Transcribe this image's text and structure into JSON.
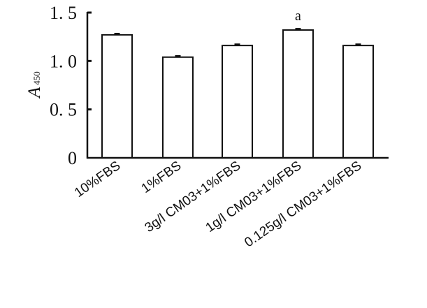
{
  "chart_data": {
    "type": "bar",
    "categories": [
      "10%FBS",
      "1%FBS",
      "3g/l CM03+1%FBS",
      "1g/l CM03+1%FBS",
      "0.125g/l CM03+1%FBS"
    ],
    "values": [
      1.27,
      1.04,
      1.16,
      1.32,
      1.16
    ],
    "errors": [
      0.01,
      0.01,
      0.01,
      0.01,
      0.01
    ],
    "annotations": [
      "",
      "",
      "",
      "a",
      ""
    ],
    "ylabel_main": "A",
    "ylabel_sub": "450",
    "ylim": [
      0,
      1.5
    ],
    "yticks": [
      0,
      0.5,
      1.0,
      1.5
    ],
    "ytick_labels": [
      "0",
      "0. 5",
      "1. 0",
      "1. 5"
    ],
    "grid": false,
    "bar_fill": "#ffffff",
    "bar_stroke": "#111111"
  }
}
